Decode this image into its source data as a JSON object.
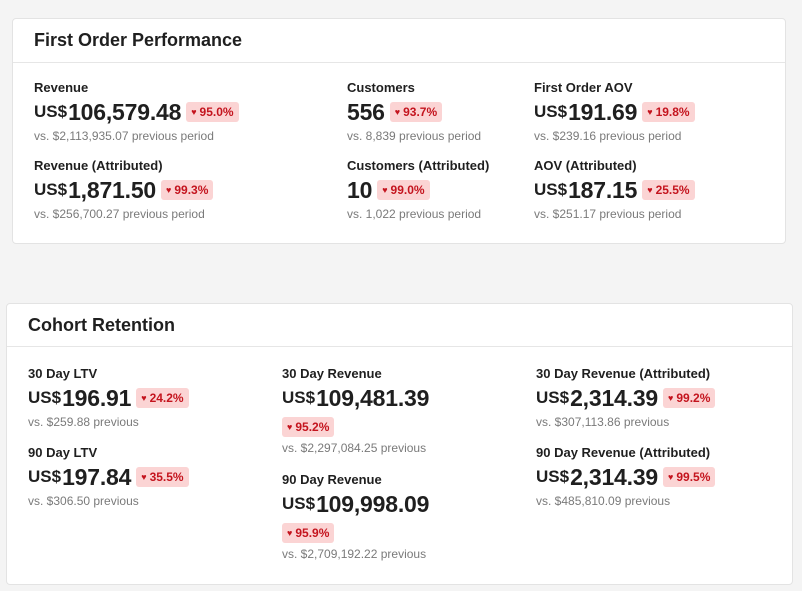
{
  "first_order": {
    "title": "First Order Performance",
    "revenue": {
      "label": "Revenue",
      "currency": "US$",
      "value": "106,579.48",
      "change": "95.0%",
      "comparison": "vs. $2,113,935.07 previous period"
    },
    "revenue_attr": {
      "label": "Revenue (Attributed)",
      "currency": "US$",
      "value": "1,871.50",
      "change": "99.3%",
      "comparison": "vs. $256,700.27 previous period"
    },
    "customers": {
      "label": "Customers",
      "value": "556",
      "change": "93.7%",
      "comparison": "vs. 8,839 previous period"
    },
    "customers_attr": {
      "label": "Customers (Attributed)",
      "value": "10",
      "change": "99.0%",
      "comparison": "vs. 1,022 previous period"
    },
    "aov": {
      "label": "First Order AOV",
      "currency": "US$",
      "value": "191.69",
      "change": "19.8%",
      "comparison": "vs. $239.16 previous period"
    },
    "aov_attr": {
      "label": "AOV (Attributed)",
      "currency": "US$",
      "value": "187.15",
      "change": "25.5%",
      "comparison": "vs. $251.17 previous period"
    }
  },
  "cohort": {
    "title": "Cohort Retention",
    "ltv30": {
      "label": "30 Day LTV",
      "currency": "US$",
      "value": "196.91",
      "change": "24.2%",
      "comparison": "vs. $259.88 previous"
    },
    "ltv90": {
      "label": "90 Day LTV",
      "currency": "US$",
      "value": "197.84",
      "change": "35.5%",
      "comparison": "vs. $306.50 previous"
    },
    "rev30": {
      "label": "30 Day Revenue",
      "currency": "US$",
      "value": "109,481.39",
      "change": "95.2%",
      "comparison": "vs. $2,297,084.25 previous"
    },
    "rev90": {
      "label": "90 Day Revenue",
      "currency": "US$",
      "value": "109,998.09",
      "change": "95.9%",
      "comparison": "vs. $2,709,192.22 previous"
    },
    "rev30_attr": {
      "label": "30 Day Revenue (Attributed)",
      "currency": "US$",
      "value": "2,314.39",
      "change": "99.2%",
      "comparison": "vs. $307,113.86 previous"
    },
    "rev90_attr": {
      "label": "90 Day Revenue (Attributed)",
      "currency": "US$",
      "value": "2,314.39",
      "change": "99.5%",
      "comparison": "vs. $485,810.09 previous"
    }
  },
  "icons": {
    "decrease": "heart-down-icon"
  },
  "colors": {
    "badge_bg": "#fbd4d4",
    "badge_text": "#c4141e",
    "muted_text": "#7a7a7a"
  }
}
